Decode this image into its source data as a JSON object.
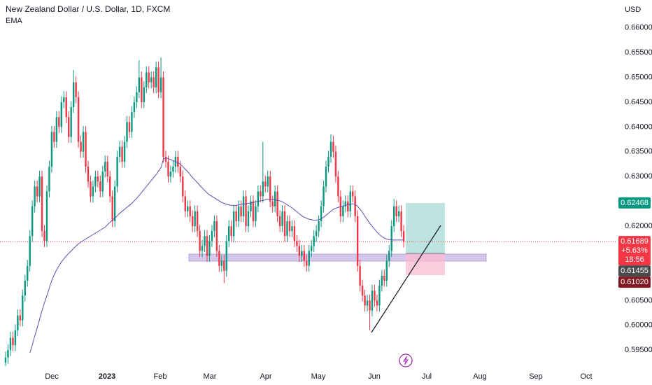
{
  "chart_data": {
    "type": "candlestick",
    "title": "New Zealand Dollar / U.S. Dollar, 1D, FXCM",
    "currency": "USD",
    "up_color": "#089981",
    "down_color": "#f23645",
    "grid": false,
    "ylim": [
      0.5915,
      0.6656
    ],
    "yticks": [
      {
        "value": 0.595,
        "label": "0.59500"
      },
      {
        "value": 0.6,
        "label": "0.60000"
      },
      {
        "value": 0.605,
        "label": "0.60500"
      },
      {
        "value": 0.62,
        "label": "0.62000"
      },
      {
        "value": 0.63,
        "label": "0.63000"
      },
      {
        "value": 0.635,
        "label": "0.63500"
      },
      {
        "value": 0.64,
        "label": "0.64000"
      },
      {
        "value": 0.645,
        "label": "0.64500"
      },
      {
        "value": 0.65,
        "label": "0.65000"
      },
      {
        "value": 0.655,
        "label": "0.65500"
      },
      {
        "value": 0.66,
        "label": "0.66000"
      }
    ],
    "xtick_labels": [
      "Dec",
      "2023",
      "Feb",
      "Mar",
      "Apr",
      "May",
      "Jun",
      "Jul",
      "Aug",
      "Sep",
      "Oct"
    ],
    "open": [
      0.5925,
      0.5935,
      0.595,
      0.5975,
      0.596,
      0.599,
      0.602,
      0.601,
      0.606,
      0.609,
      0.612,
      0.618,
      0.624,
      0.628,
      0.626,
      0.63,
      0.619,
      0.617,
      0.627,
      0.632,
      0.639,
      0.637,
      0.642,
      0.64,
      0.645,
      0.646,
      0.642,
      0.638,
      0.644,
      0.649,
      0.646,
      0.637,
      0.635,
      0.639,
      0.632,
      0.629,
      0.626,
      0.628,
      0.63,
      0.629,
      0.627,
      0.631,
      0.633,
      0.63,
      0.626,
      0.621,
      0.628,
      0.634,
      0.636,
      0.633,
      0.637,
      0.641,
      0.639,
      0.643,
      0.645,
      0.647,
      0.65,
      0.645,
      0.648,
      0.651,
      0.649,
      0.65,
      0.648,
      0.652,
      0.647,
      0.65,
      0.634,
      0.633,
      0.63,
      0.631,
      0.632,
      0.634,
      0.632,
      0.63,
      0.626,
      0.623,
      0.624,
      0.622,
      0.62,
      0.623,
      0.619,
      0.615,
      0.616,
      0.618,
      0.614,
      0.617,
      0.619,
      0.621,
      0.615,
      0.612,
      0.613,
      0.611,
      0.617,
      0.62,
      0.618,
      0.623,
      0.621,
      0.624,
      0.622,
      0.626,
      0.62,
      0.623,
      0.625,
      0.621,
      0.624,
      0.627,
      0.626,
      0.629,
      0.628,
      0.63,
      0.625,
      0.624,
      0.627,
      0.622,
      0.62,
      0.623,
      0.618,
      0.621,
      0.619,
      0.62,
      0.617,
      0.616,
      0.614,
      0.615,
      0.613,
      0.612,
      0.615,
      0.616,
      0.618,
      0.619,
      0.621,
      0.624,
      0.628,
      0.632,
      0.634,
      0.637,
      0.635,
      0.63,
      0.626,
      0.622,
      0.624,
      0.625,
      0.623,
      0.627,
      0.626,
      0.622,
      0.612,
      0.608,
      0.606,
      0.604,
      0.605,
      0.603,
      0.607,
      0.605,
      0.604,
      0.608,
      0.61,
      0.609,
      0.613,
      0.615,
      0.62,
      0.624,
      0.622,
      0.623,
      0.619
    ],
    "high": [
      0.5947,
      0.5962,
      0.5987,
      0.5987,
      0.6002,
      0.6032,
      0.6032,
      0.6072,
      0.6102,
      0.6132,
      0.6192,
      0.6252,
      0.6292,
      0.6292,
      0.6312,
      0.6312,
      0.6202,
      0.6282,
      0.6332,
      0.6402,
      0.6402,
      0.6432,
      0.6432,
      0.6462,
      0.6472,
      0.6472,
      0.6432,
      0.6452,
      0.6515,
      0.6502,
      0.6472,
      0.6382,
      0.6402,
      0.6402,
      0.6332,
      0.6302,
      0.6292,
      0.6312,
      0.6312,
      0.6302,
      0.6322,
      0.6342,
      0.6342,
      0.6312,
      0.6272,
      0.6292,
      0.6352,
      0.6372,
      0.6372,
      0.6382,
      0.6422,
      0.6422,
      0.6442,
      0.6462,
      0.6482,
      0.6535,
      0.6512,
      0.6492,
      0.6522,
      0.6522,
      0.6512,
      0.6512,
      0.6532,
      0.6532,
      0.654,
      0.6512,
      0.6352,
      0.6342,
      0.6322,
      0.6332,
      0.6352,
      0.6352,
      0.6332,
      0.6312,
      0.6272,
      0.6252,
      0.6252,
      0.6232,
      0.6242,
      0.6242,
      0.6202,
      0.6172,
      0.6192,
      0.6192,
      0.6182,
      0.6202,
      0.6222,
      0.6222,
      0.6162,
      0.6142,
      0.6142,
      0.6182,
      0.6212,
      0.6212,
      0.6242,
      0.6242,
      0.6252,
      0.6252,
      0.6272,
      0.6272,
      0.6242,
      0.6262,
      0.6262,
      0.6252,
      0.6282,
      0.6282,
      0.637,
      0.6302,
      0.6312,
      0.6312,
      0.6262,
      0.6282,
      0.6282,
      0.6232,
      0.6242,
      0.6242,
      0.6222,
      0.6222,
      0.6212,
      0.6212,
      0.6182,
      0.6172,
      0.6162,
      0.6162,
      0.6142,
      0.6162,
      0.6172,
      0.6192,
      0.6202,
      0.6222,
      0.6252,
      0.6292,
      0.6332,
      0.6352,
      0.6385,
      0.6382,
      0.6362,
      0.6312,
      0.6272,
      0.6252,
      0.6262,
      0.6262,
      0.6282,
      0.6282,
      0.6272,
      0.6232,
      0.6132,
      0.6092,
      0.6072,
      0.6062,
      0.6062,
      0.6082,
      0.6082,
      0.6062,
      0.6092,
      0.6112,
      0.6112,
      0.6142,
      0.6162,
      0.6212,
      0.6255,
      0.6252,
      0.6242,
      0.6242,
      0.6202
    ],
    "low": [
      0.5918,
      0.5923,
      0.5938,
      0.5948,
      0.5948,
      0.5978,
      0.5998,
      0.5998,
      0.6048,
      0.6078,
      0.6108,
      0.6168,
      0.6228,
      0.6248,
      0.6248,
      0.6178,
      0.6158,
      0.6158,
      0.6258,
      0.6308,
      0.6358,
      0.6358,
      0.6388,
      0.6388,
      0.6438,
      0.6408,
      0.6368,
      0.6368,
      0.6428,
      0.6448,
      0.6358,
      0.6338,
      0.6338,
      0.6308,
      0.6278,
      0.6248,
      0.6248,
      0.6268,
      0.6278,
      0.6258,
      0.6258,
      0.6298,
      0.6288,
      0.6248,
      0.6198,
      0.6198,
      0.6268,
      0.6328,
      0.6318,
      0.6318,
      0.6358,
      0.6378,
      0.6378,
      0.6418,
      0.6438,
      0.6458,
      0.6438,
      0.6438,
      0.6468,
      0.6478,
      0.6478,
      0.6468,
      0.6468,
      0.6458,
      0.6458,
      0.6328,
      0.6318,
      0.6288,
      0.6288,
      0.6298,
      0.6308,
      0.6308,
      0.6288,
      0.6248,
      0.6218,
      0.6218,
      0.6208,
      0.6188,
      0.6188,
      0.6178,
      0.6138,
      0.6138,
      0.6148,
      0.6128,
      0.6128,
      0.6158,
      0.6178,
      0.6138,
      0.6108,
      0.6108,
      0.6085,
      0.6098,
      0.6158,
      0.6168,
      0.6168,
      0.6198,
      0.6198,
      0.6208,
      0.6208,
      0.6188,
      0.6188,
      0.6218,
      0.6198,
      0.6198,
      0.6228,
      0.6248,
      0.6248,
      0.6268,
      0.6268,
      0.6238,
      0.6228,
      0.6228,
      0.6208,
      0.6188,
      0.6188,
      0.6168,
      0.6168,
      0.6178,
      0.6178,
      0.6158,
      0.6148,
      0.6128,
      0.6128,
      0.6118,
      0.6108,
      0.6108,
      0.6138,
      0.6148,
      0.6168,
      0.6178,
      0.6198,
      0.6228,
      0.6268,
      0.6308,
      0.6328,
      0.6338,
      0.6288,
      0.6248,
      0.6208,
      0.6208,
      0.6228,
      0.6218,
      0.6218,
      0.6248,
      0.6208,
      0.6108,
      0.6068,
      0.6048,
      0.6028,
      0.6028,
      0.599,
      0.6018,
      0.6038,
      0.6028,
      0.6028,
      0.6068,
      0.6078,
      0.6078,
      0.6118,
      0.6138,
      0.6188,
      0.6208,
      0.6208,
      0.6178,
      0.6157
    ],
    "close": [
      0.5935,
      0.595,
      0.5975,
      0.596,
      0.599,
      0.602,
      0.601,
      0.606,
      0.609,
      0.612,
      0.618,
      0.624,
      0.628,
      0.626,
      0.63,
      0.619,
      0.617,
      0.627,
      0.632,
      0.639,
      0.637,
      0.642,
      0.64,
      0.645,
      0.646,
      0.642,
      0.638,
      0.644,
      0.649,
      0.646,
      0.637,
      0.635,
      0.639,
      0.632,
      0.629,
      0.626,
      0.628,
      0.63,
      0.629,
      0.627,
      0.631,
      0.633,
      0.63,
      0.626,
      0.621,
      0.628,
      0.634,
      0.636,
      0.633,
      0.637,
      0.641,
      0.639,
      0.643,
      0.645,
      0.647,
      0.65,
      0.645,
      0.648,
      0.651,
      0.649,
      0.65,
      0.648,
      0.652,
      0.647,
      0.65,
      0.634,
      0.633,
      0.63,
      0.631,
      0.632,
      0.634,
      0.632,
      0.63,
      0.626,
      0.623,
      0.624,
      0.622,
      0.62,
      0.623,
      0.619,
      0.615,
      0.616,
      0.618,
      0.614,
      0.617,
      0.619,
      0.621,
      0.615,
      0.612,
      0.613,
      0.611,
      0.617,
      0.62,
      0.618,
      0.623,
      0.621,
      0.624,
      0.622,
      0.626,
      0.62,
      0.623,
      0.625,
      0.621,
      0.624,
      0.627,
      0.626,
      0.629,
      0.628,
      0.63,
      0.625,
      0.624,
      0.627,
      0.622,
      0.62,
      0.623,
      0.618,
      0.621,
      0.619,
      0.62,
      0.617,
      0.616,
      0.614,
      0.615,
      0.613,
      0.612,
      0.615,
      0.616,
      0.618,
      0.619,
      0.621,
      0.624,
      0.628,
      0.632,
      0.634,
      0.637,
      0.635,
      0.63,
      0.626,
      0.622,
      0.624,
      0.625,
      0.623,
      0.627,
      0.626,
      0.622,
      0.612,
      0.608,
      0.606,
      0.604,
      0.605,
      0.603,
      0.607,
      0.605,
      0.604,
      0.608,
      0.61,
      0.609,
      0.613,
      0.615,
      0.62,
      0.624,
      0.622,
      0.623,
      0.619,
      0.6169
    ],
    "series": [
      {
        "name": "EMA",
        "color": "#5a4fb0",
        "values": [
          null,
          null,
          null,
          null,
          null,
          null,
          null,
          null,
          null,
          null,
          0.5945,
          0.596,
          0.5978,
          0.5995,
          0.6012,
          0.603,
          0.6045,
          0.606,
          0.6075,
          0.609,
          0.6102,
          0.6112,
          0.612,
          0.6128,
          0.6134,
          0.614,
          0.6145,
          0.615,
          0.6155,
          0.616,
          0.6164,
          0.6168,
          0.6171,
          0.6174,
          0.6177,
          0.618,
          0.6183,
          0.6186,
          0.6189,
          0.6192,
          0.6195,
          0.6198,
          0.6203,
          0.6208,
          0.6212,
          0.6216,
          0.6221,
          0.6226,
          0.623,
          0.6234,
          0.6238,
          0.6242,
          0.6246,
          0.6251,
          0.6256,
          0.6262,
          0.6268,
          0.6274,
          0.628,
          0.6286,
          0.6292,
          0.6298,
          0.6304,
          0.6311,
          0.6318,
          0.6335,
          0.6338,
          0.6336,
          0.6334,
          0.6332,
          0.633,
          0.6328,
          0.6325,
          0.632,
          0.6315,
          0.631,
          0.6304,
          0.6298,
          0.6293,
          0.6288,
          0.6282,
          0.6277,
          0.6272,
          0.6267,
          0.6263,
          0.626,
          0.6257,
          0.6254,
          0.6251,
          0.6248,
          0.6246,
          0.6244,
          0.6243,
          0.6242,
          0.6242,
          0.6242,
          0.6243,
          0.6244,
          0.6245,
          0.6245,
          0.6246,
          0.6247,
          0.6248,
          0.6249,
          0.625,
          0.6251,
          0.6252,
          0.6253,
          0.6254,
          0.6254,
          0.6253,
          0.6253,
          0.6252,
          0.6251,
          0.6249,
          0.6246,
          0.6243,
          0.624,
          0.6237,
          0.6233,
          0.6229,
          0.6225,
          0.6221,
          0.6218,
          0.6216,
          0.6214,
          0.6213,
          0.6212,
          0.6212,
          0.6213,
          0.6215,
          0.6218,
          0.6222,
          0.6226,
          0.623,
          0.6234,
          0.6236,
          0.6238,
          0.6239,
          0.624,
          0.6242,
          0.6243,
          0.6244,
          0.6245,
          0.6244,
          0.624,
          0.6234,
          0.6228,
          0.622,
          0.6213,
          0.6206,
          0.62,
          0.6194,
          0.6188,
          0.6183,
          0.6179,
          0.6176,
          0.6174,
          0.6173,
          0.6172,
          0.6172,
          0.6172,
          0.6172,
          0.6172,
          0.6172
        ]
      }
    ],
    "price_labels": [
      {
        "value": 0.62468,
        "color": "#089981"
      },
      {
        "value": 0.61689,
        "change": {
          "value": 5.63,
          "label": "+5.63%"
        },
        "countdown": "18:56",
        "color": "#f23645"
      },
      {
        "value": 0.61455,
        "color": "#4a4a4a"
      },
      {
        "value": 0.6102,
        "label": "0.61020",
        "color": "#801922"
      }
    ]
  }
}
